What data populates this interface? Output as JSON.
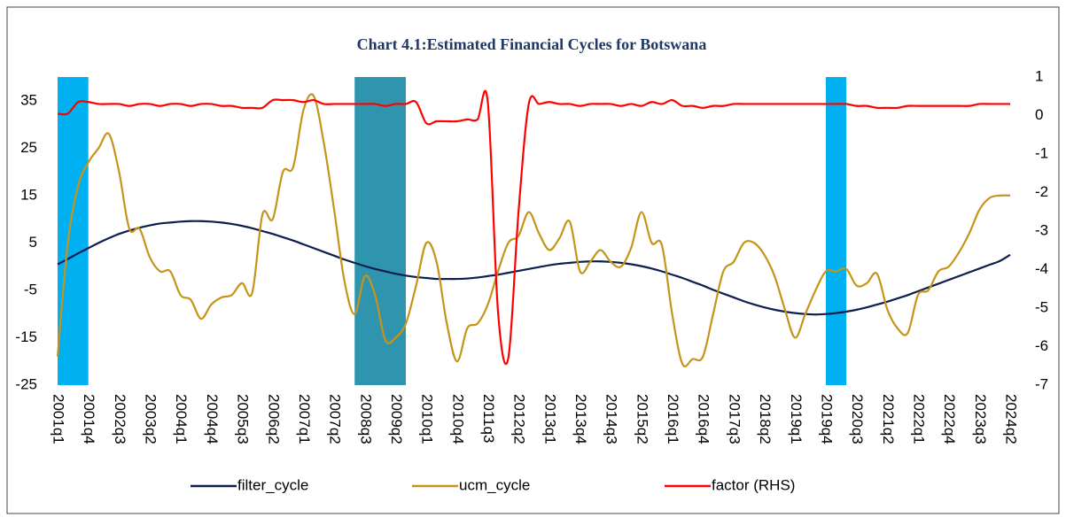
{
  "chart_data": {
    "type": "line",
    "title": "Chart 4.1:Estimated Financial Cycles for Botswana",
    "categories": [
      "2001q1",
      null,
      null,
      "2001q4",
      null,
      null,
      "2002q3",
      null,
      null,
      "2003q2",
      null,
      null,
      "2004q1",
      null,
      null,
      "2004q4",
      null,
      null,
      "2005q3",
      null,
      null,
      "2006q2",
      null,
      null,
      "2007q1",
      null,
      null,
      "2007q2",
      null,
      null,
      "2008q3",
      null,
      null,
      "2009q2",
      null,
      null,
      "2010q1",
      null,
      null,
      "2010q4",
      null,
      null,
      "2011q3",
      null,
      null,
      "2012q2",
      null,
      null,
      "2013q1",
      null,
      null,
      "2013q4",
      null,
      null,
      "2014q3",
      null,
      null,
      "2015q2",
      null,
      null,
      "2016q1",
      null,
      null,
      "2016q4",
      null,
      null,
      "2017q3",
      null,
      null,
      "2018q2",
      null,
      null,
      "2019q1",
      null,
      null,
      "2019q4",
      null,
      null,
      "2020q3",
      null,
      null,
      "2021q2",
      null,
      null,
      "2022q1",
      null,
      null,
      "2022q4",
      null,
      null,
      "2023q3",
      null,
      null,
      "2024q2"
    ],
    "series": [
      {
        "name": "filter_cycle",
        "color": "#0d1f4f",
        "values": [
          0.5,
          1.6,
          2.8,
          3.9,
          5.0,
          6.0,
          6.9,
          7.6,
          8.2,
          8.7,
          9.1,
          9.3,
          9.5,
          9.6,
          9.6,
          9.5,
          9.3,
          9.0,
          8.6,
          8.1,
          7.5,
          6.9,
          6.2,
          5.5,
          4.7,
          3.9,
          3.1,
          2.3,
          1.5,
          0.8,
          0.1,
          -0.5,
          -1.0,
          -1.5,
          -1.9,
          -2.2,
          -2.4,
          -2.6,
          -2.6,
          -2.6,
          -2.5,
          -2.3,
          -2.0,
          -1.7,
          -1.3,
          -0.9,
          -0.5,
          -0.1,
          0.3,
          0.6,
          0.8,
          1.0,
          1.1,
          1.1,
          1.0,
          0.8,
          0.5,
          0.1,
          -0.4,
          -1.0,
          -1.7,
          -2.4,
          -3.2,
          -4.0,
          -4.9,
          -5.7,
          -6.5,
          -7.3,
          -8.0,
          -8.6,
          -9.1,
          -9.5,
          -9.8,
          -10.0,
          -10.1,
          -10.0,
          -9.8,
          -9.5,
          -9.1,
          -8.6,
          -8.0,
          -7.4,
          -6.7,
          -6.0,
          -5.2,
          -4.4,
          -3.6,
          -2.8,
          -2.0,
          -1.2,
          -0.4,
          0.4,
          1.2,
          2.5
        ]
      },
      {
        "name": "ucm_cycle",
        "color": "#c59418",
        "values": [
          -19,
          5,
          17,
          22,
          25,
          28,
          20,
          8,
          8,
          2,
          -1,
          -1,
          -6,
          -7,
          -11,
          -8,
          -6.5,
          -6,
          -3.5,
          -5.5,
          11,
          10,
          20,
          21,
          33,
          36,
          26,
          12,
          -3,
          -10,
          -2,
          -6,
          -15.5,
          -15,
          -12,
          -4,
          5,
          1,
          -12,
          -20,
          -13,
          -12,
          -8,
          -1,
          5,
          6.5,
          11.5,
          7,
          3.5,
          6,
          9.5,
          -1,
          1,
          3.5,
          1,
          0,
          4,
          11.5,
          5,
          4.5,
          -10,
          -20.5,
          -19.5,
          -19,
          -10,
          -1,
          1,
          5,
          5,
          2.5,
          -2,
          -9,
          -15,
          -10,
          -5,
          -1,
          -1,
          -0.5,
          -4,
          -3.5,
          -1.5,
          -9,
          -13,
          -14,
          -6,
          -5,
          -1,
          0,
          3,
          7,
          12,
          14.5,
          15,
          15
        ]
      },
      {
        "name": "factor (RHS)",
        "color": "#ff0000",
        "axis": "y2",
        "values": [
          0.05,
          0.05,
          0.35,
          0.35,
          0.3,
          0.3,
          0.3,
          0.25,
          0.3,
          0.3,
          0.25,
          0.3,
          0.3,
          0.25,
          0.3,
          0.3,
          0.25,
          0.25,
          0.2,
          0.2,
          0.2,
          0.4,
          0.4,
          0.4,
          0.35,
          0.4,
          0.3,
          0.3,
          0.3,
          0.3,
          0.3,
          0.3,
          0.25,
          0.3,
          0.3,
          0.35,
          -0.2,
          -0.15,
          -0.15,
          -0.15,
          -0.1,
          -0.1,
          0.35,
          -5.1,
          -6.3,
          -2.5,
          0.3,
          0.3,
          0.35,
          0.3,
          0.3,
          0.25,
          0.3,
          0.3,
          0.3,
          0.25,
          0.3,
          0.25,
          0.35,
          0.3,
          0.4,
          0.25,
          0.25,
          0.2,
          0.25,
          0.25,
          0.3,
          0.3,
          0.3,
          0.3,
          0.3,
          0.3,
          0.3,
          0.3,
          0.3,
          0.3,
          0.3,
          0.3,
          0.25,
          0.25,
          0.2,
          0.2,
          0.2,
          0.25,
          0.25,
          0.25,
          0.25,
          0.25,
          0.25,
          0.25,
          0.3,
          0.3,
          0.3,
          0.3
        ]
      }
    ],
    "shaded_periods": [
      {
        "start": "2001q1",
        "end": "2001q4",
        "color": "#00b0f0"
      },
      {
        "start": "2008q2",
        "end": "2009q3",
        "color": "#2f95ae"
      },
      {
        "start": "2019q4",
        "end": "2020q2",
        "color": "#00b0f0"
      }
    ],
    "ylim": [
      -25,
      40
    ],
    "yticks": [
      -25,
      -15,
      -5,
      5,
      15,
      25,
      35
    ],
    "y2lim": [
      -7,
      1
    ],
    "y2ticks": [
      -7,
      -6,
      -5,
      -4,
      -3,
      -2,
      -1,
      0,
      1
    ],
    "grid": false,
    "legend": "bottom"
  }
}
